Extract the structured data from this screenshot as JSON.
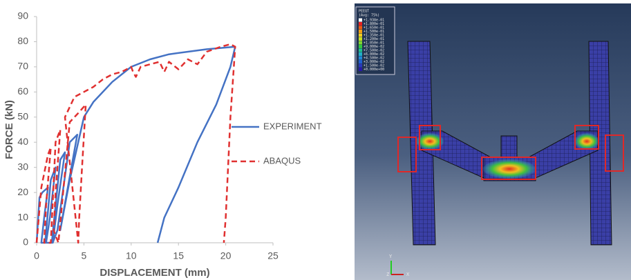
{
  "chart_data": {
    "type": "line",
    "x_label": "DISPLACEMENT (mm)",
    "y_label": "FORCE (kN)",
    "xlim": [
      0,
      25
    ],
    "xticks": [
      0,
      5,
      10,
      15,
      20,
      25
    ],
    "ylim": [
      0,
      90
    ],
    "yticks": [
      0,
      10,
      20,
      30,
      40,
      50,
      60,
      70,
      80,
      90
    ],
    "grid": false,
    "legend": "right",
    "series": [
      {
        "name": "EXPERIMENT",
        "color": "#4472c4",
        "line_style": "solid",
        "x": [
          0,
          0.3,
          0.6,
          1.2,
          0.8,
          0.5,
          0.9,
          1.5,
          2,
          1.4,
          1,
          1.6,
          2.5,
          3,
          2.2,
          1.7,
          2.2,
          3.5,
          4.3,
          3.2,
          2.5,
          3.5,
          5,
          6,
          8,
          10,
          12,
          14,
          16,
          18,
          21,
          20.5,
          19,
          17,
          15,
          13.5,
          12.8
        ],
        "values": [
          0,
          18,
          20,
          22,
          10,
          0,
          0,
          25,
          30,
          10,
          0,
          0,
          33,
          36,
          15,
          0,
          5,
          40,
          43,
          20,
          5,
          25,
          50,
          56,
          64,
          70,
          73,
          75,
          76,
          77,
          78,
          70,
          55,
          40,
          22,
          10,
          0
        ]
      },
      {
        "name": "ABAQUS",
        "color": "#e03030",
        "line_style": "dashed",
        "x": [
          0,
          0.5,
          1.2,
          1.5,
          1,
          0.8,
          1.5,
          2,
          2.5,
          2,
          1.8,
          2.3,
          3.5,
          4.5,
          5.2,
          4.8,
          4.5,
          4.4,
          3,
          4,
          5,
          6,
          7,
          8,
          9,
          10,
          10.2,
          10.5,
          11,
          13,
          13.5,
          14,
          15,
          16,
          17,
          18,
          19.5,
          20.5,
          21,
          20.5,
          20,
          19.8
        ],
        "values": [
          0,
          22,
          35,
          38,
          15,
          0,
          0,
          40,
          45,
          20,
          5,
          0,
          48,
          52,
          55,
          30,
          10,
          0,
          50,
          58,
          60,
          62,
          65,
          67,
          68,
          70,
          68,
          66,
          70,
          72,
          68,
          72,
          69,
          73,
          71,
          76,
          78,
          79,
          78,
          50,
          10,
          0
        ]
      }
    ]
  },
  "fe_model": {
    "legend_title": "PEEQT",
    "legend_sub": "(Avg: 75%)",
    "legend_values": [
      "+1.938e-01",
      "+1.800e-01",
      "+1.650e-01",
      "+1.500e-01",
      "+1.350e-01",
      "+1.200e-01",
      "+1.050e-01",
      "+9.000e-02",
      "+7.500e-02",
      "+6.000e-02",
      "+4.500e-02",
      "+3.000e-02",
      "+1.500e-02",
      "+0.000e+00"
    ],
    "axis_y": "Y",
    "axis_z": "Z",
    "axis_x": "X"
  }
}
